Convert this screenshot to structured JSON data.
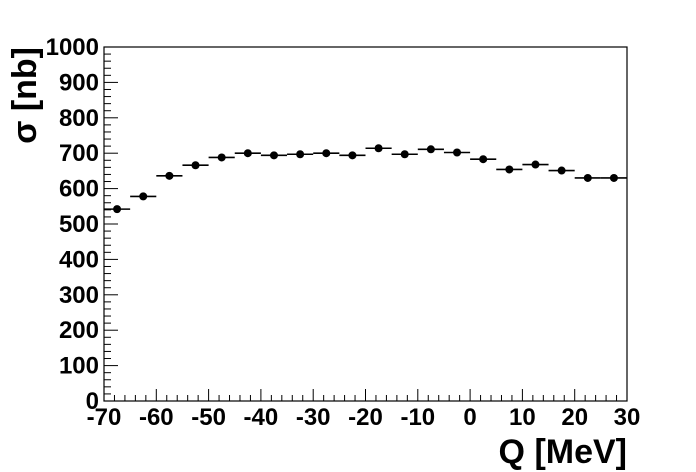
{
  "chart_data": {
    "type": "scatter",
    "title": "",
    "xlabel": "Q [MeV]",
    "ylabel": "σ [nb]",
    "xlim": [
      -70,
      30
    ],
    "ylim": [
      0,
      1000
    ],
    "x_ticks": [
      "-70",
      "-60",
      "-50",
      "-40",
      "-30",
      "-20",
      "-10",
      "0",
      "10",
      "20",
      "30"
    ],
    "y_ticks": [
      "0",
      "100",
      "200",
      "300",
      "400",
      "500",
      "600",
      "700",
      "800",
      "900",
      "1000"
    ],
    "grid": false,
    "bin_width": 5,
    "series": [
      {
        "x": [
          -67.5,
          -62.5,
          -57.5,
          -52.5,
          -47.5,
          -42.5,
          -37.5,
          -32.5,
          -27.5,
          -22.5,
          -17.5,
          -12.5,
          -7.5,
          -2.5,
          2.5,
          7.5,
          12.5,
          17.5,
          22.5,
          27.5
        ],
        "y": [
          542,
          578,
          636,
          666,
          688,
          700,
          694,
          697,
          700,
          694,
          714,
          697,
          711,
          702,
          683,
          654,
          668,
          651,
          630,
          630
        ],
        "yerr": [
          8,
          8,
          8,
          8,
          8,
          8,
          8,
          8,
          8,
          8,
          8,
          8,
          8,
          8,
          8,
          8,
          8,
          8,
          8,
          8
        ]
      }
    ]
  }
}
